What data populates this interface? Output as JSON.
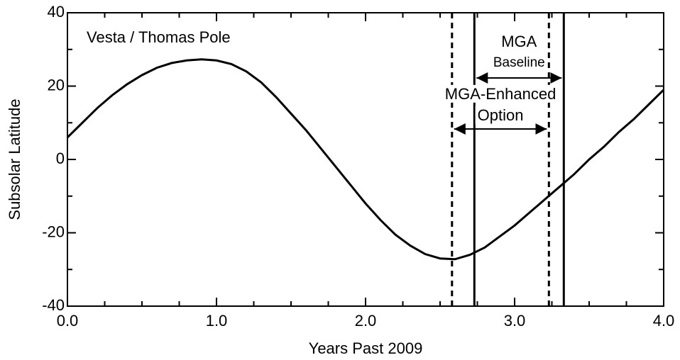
{
  "chart_data": {
    "type": "line",
    "x_label": "Years Past 2009",
    "y_label": "Subsolar Latitude",
    "annotation": "Vesta / Thomas Pole",
    "x": [
      0.0,
      0.1,
      0.2,
      0.3,
      0.4,
      0.5,
      0.6,
      0.7,
      0.8,
      0.9,
      1.0,
      1.1,
      1.2,
      1.3,
      1.4,
      1.5,
      1.6,
      1.7,
      1.8,
      1.9,
      2.0,
      2.1,
      2.2,
      2.3,
      2.4,
      2.5,
      2.6,
      2.7,
      2.8,
      2.9,
      3.0,
      3.1,
      3.2,
      3.3,
      3.4,
      3.5,
      3.6,
      3.7,
      3.8,
      3.9,
      4.0
    ],
    "series": [
      {
        "color": "#000000",
        "values": [
          6,
          10,
          14,
          17.5,
          20.5,
          23,
          25,
          26.3,
          27,
          27.3,
          27,
          26,
          24,
          21,
          17,
          12.5,
          8,
          3,
          -2,
          -7,
          -12,
          -16.5,
          -20.5,
          -23.5,
          -25.8,
          -27,
          -27.2,
          -26,
          -24,
          -21,
          -18,
          -14.5,
          -11,
          -7.5,
          -4,
          0,
          3.5,
          7.5,
          11,
          15,
          19
        ]
      }
    ],
    "xlim": [
      0,
      4
    ],
    "ylim": [
      -40,
      40
    ],
    "xticks": [
      {
        "value": 0,
        "label": "0.0"
      },
      {
        "value": 1,
        "label": "1.0"
      },
      {
        "value": 2,
        "label": "2.0"
      },
      {
        "value": 3,
        "label": "3.0"
      },
      {
        "value": 4,
        "label": "4.0"
      }
    ],
    "yticks": [
      -40,
      -20,
      0,
      20,
      40
    ],
    "x_minor_ticks": [
      0.25,
      0.5,
      0.75,
      1.25,
      1.5,
      1.75,
      2.25,
      2.5,
      2.75,
      3.25,
      3.5,
      3.75
    ],
    "y_minor_ticks": [
      -30,
      -10,
      10,
      30
    ],
    "ranges": [
      {
        "labels": [
          "MGA",
          "Baseline"
        ],
        "start": 2.73,
        "end": 3.33,
        "style": "solid"
      },
      {
        "labels": [
          "MGA-Enhanced",
          "Option"
        ],
        "start": 2.58,
        "end": 3.23,
        "style": "dashed"
      }
    ]
  }
}
